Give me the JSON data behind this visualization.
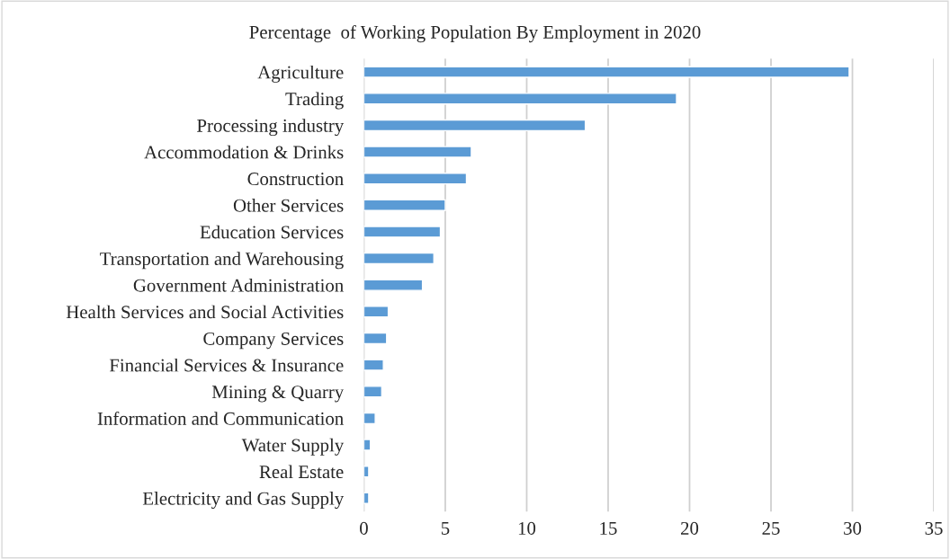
{
  "chart_data": {
    "type": "bar",
    "orientation": "horizontal",
    "title": "Percentage  of Working Population By Employment in 2020",
    "categories": [
      "Agriculture",
      "Trading",
      "Processing industry",
      "Accommodation & Drinks",
      "Construction",
      "Other Services",
      "Education Services",
      "Transportation and Warehousing",
      "Government Administration",
      "Health Services and Social Activities",
      "Company Services",
      "Financial Services & Insurance",
      "Mining & Quarry",
      "Information and Communication",
      "Water Supply",
      "Real Estate",
      "Electricity and Gas Supply"
    ],
    "values": [
      29.8,
      19.2,
      13.6,
      6.6,
      6.3,
      5.0,
      4.7,
      4.3,
      3.6,
      1.5,
      1.4,
      1.2,
      1.1,
      0.7,
      0.4,
      0.3,
      0.3
    ],
    "color": "#5b9bd5",
    "xlim": [
      0,
      35
    ],
    "xticks": [
      0,
      5,
      10,
      15,
      20,
      25,
      30,
      35
    ],
    "grid": "x"
  }
}
